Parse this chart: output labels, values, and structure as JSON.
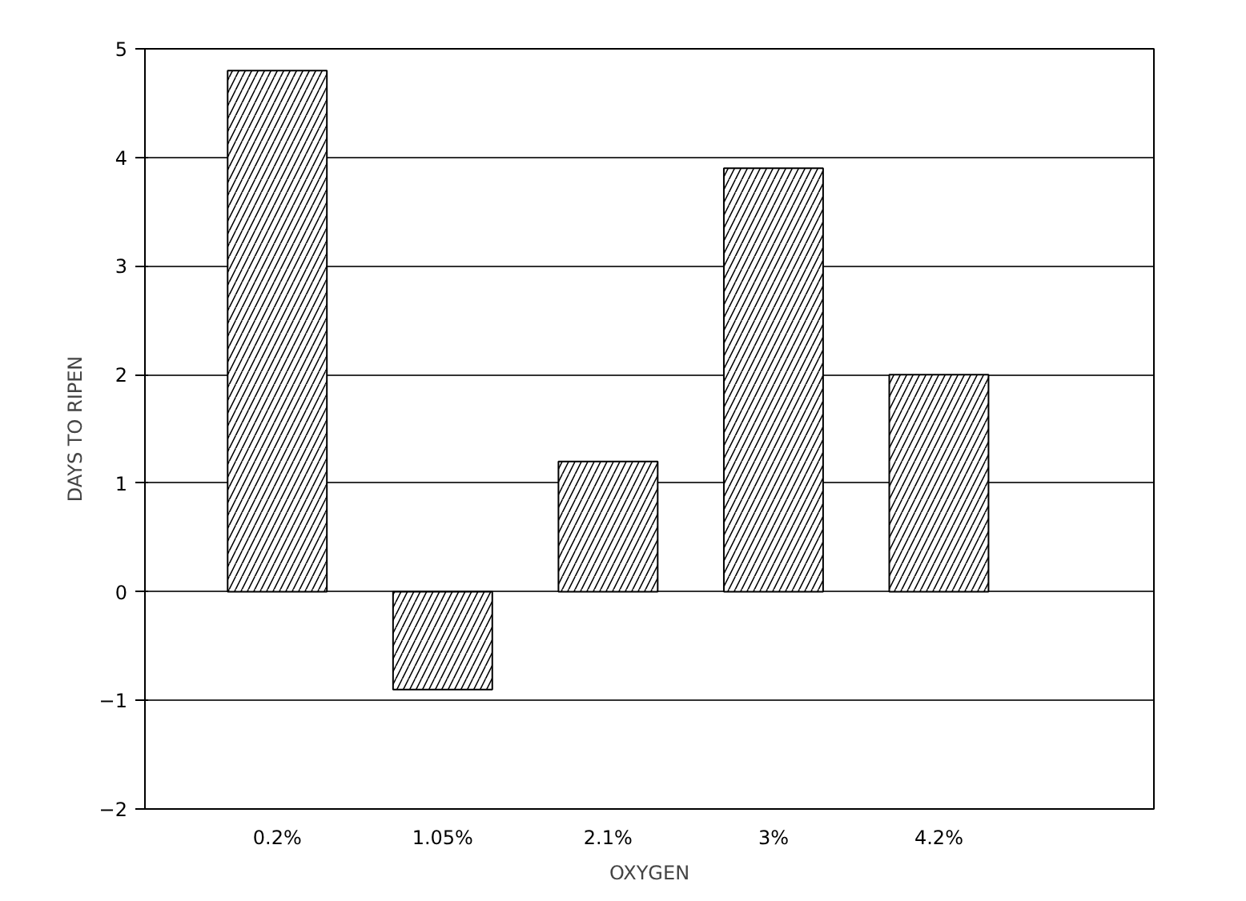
{
  "chart_data": {
    "type": "bar",
    "xlabel": "OXYGEN",
    "ylabel": "DAYS TO RIPEN",
    "categories": [
      "0.2%",
      "1.05%",
      "2.1%",
      "3%",
      "4.2%"
    ],
    "values": [
      4.8,
      -0.9,
      1.2,
      3.9,
      2.0
    ],
    "color": "#000000",
    "ylim": [
      -2,
      5
    ],
    "yticks": [
      -2,
      -1,
      0,
      1,
      2,
      3,
      4,
      5
    ],
    "grid": "y"
  }
}
